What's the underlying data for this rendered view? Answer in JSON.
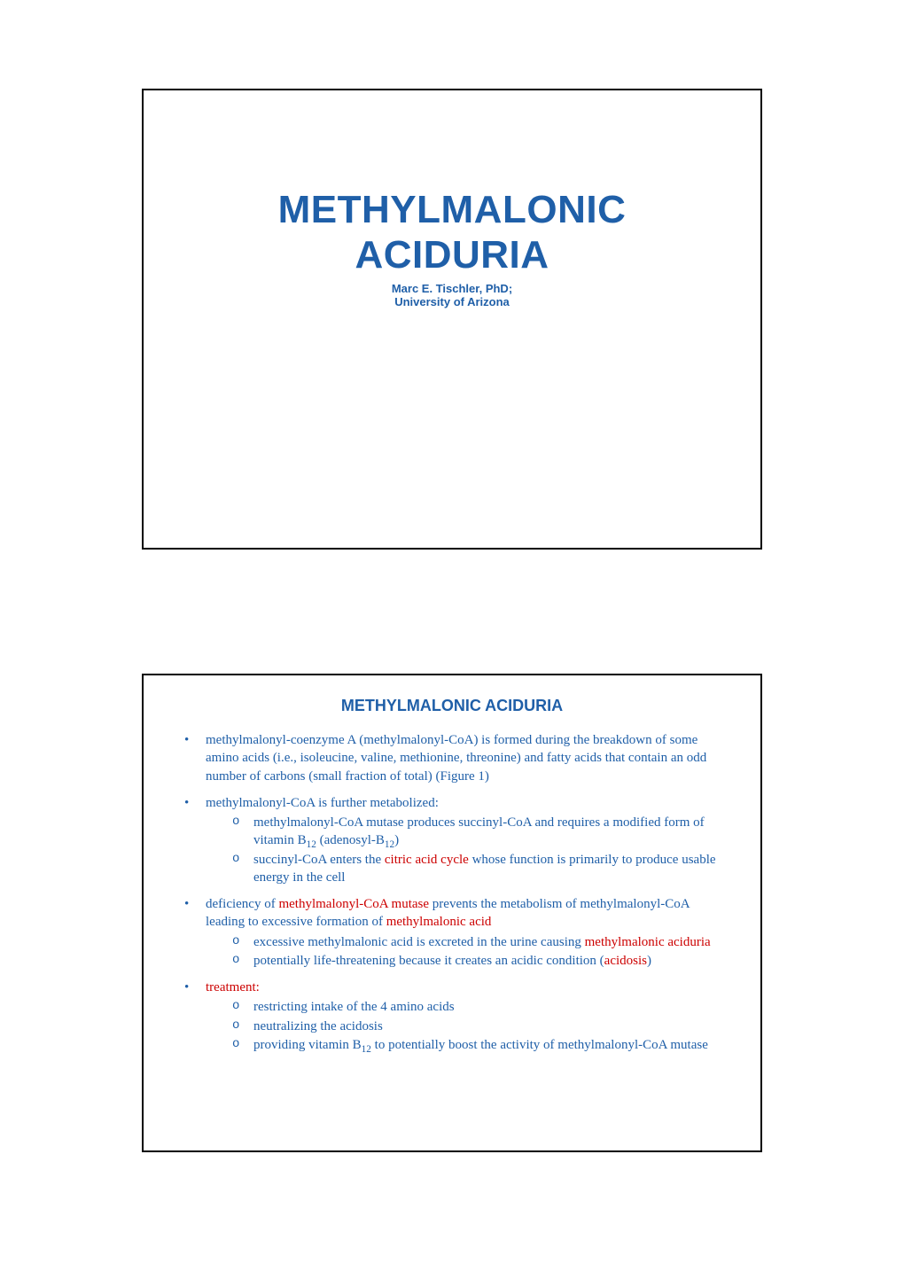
{
  "colors": {
    "blue": "#1f5fa8",
    "red": "#cc0000",
    "border": "#000000",
    "background": "#ffffff"
  },
  "typography": {
    "title_fontsize": 44,
    "author_fontsize": 13,
    "heading_fontsize": 18,
    "body_fontsize": 15,
    "title_font": "Arial",
    "body_font": "Times New Roman"
  },
  "slide1": {
    "title_line1": "METHYLMALONIC",
    "title_line2": "ACIDURIA",
    "author": "Marc E. Tischler, PhD;",
    "affiliation": "University of Arizona"
  },
  "slide2": {
    "heading": "METHYLMALONIC ACIDURIA",
    "b1": {
      "t1": "methylmalonyl-coenzyme A (methylmalonyl-CoA) is formed during the breakdown of some amino acids (i.e., isoleucine, valine, methionine, threonine) and fatty acids that contain an odd number of carbons (small fraction of total) (Figure 1)"
    },
    "b2": {
      "intro": "methylmalonyl-CoA is further metabolized:",
      "s1a": "methylmalonyl-CoA mutase produces succinyl-CoA and requires a modified form of vitamin B",
      "s1b": " (adenosyl-B",
      "s1c": ")",
      "s2a": "succinyl-CoA enters the ",
      "s2b": "citric acid cycle",
      "s2c": " whose function is primarily to produce usable energy in the cell"
    },
    "b3": {
      "intro_a": "deficiency of ",
      "intro_b": "methylmalonyl-CoA mutase",
      "intro_c": " prevents the metabolism of methylmalonyl-CoA leading to excessive formation of ",
      "intro_d": "methylmalonic acid",
      "s1a": "excessive methylmalonic acid is excreted in the urine causing ",
      "s1b": "methylmalonic aciduria",
      "s2a": "potentially life-threatening because it creates an acidic condition (",
      "s2b": "acidosis",
      "s2c": ")"
    },
    "b4": {
      "intro": "treatment:",
      "s1": "restricting intake of the 4 amino acids",
      "s2": "neutralizing the acidosis",
      "s3a": "providing vitamin B",
      "s3b": " to potentially boost the activity of methylmalonyl-CoA mutase"
    },
    "sub12": "12"
  }
}
